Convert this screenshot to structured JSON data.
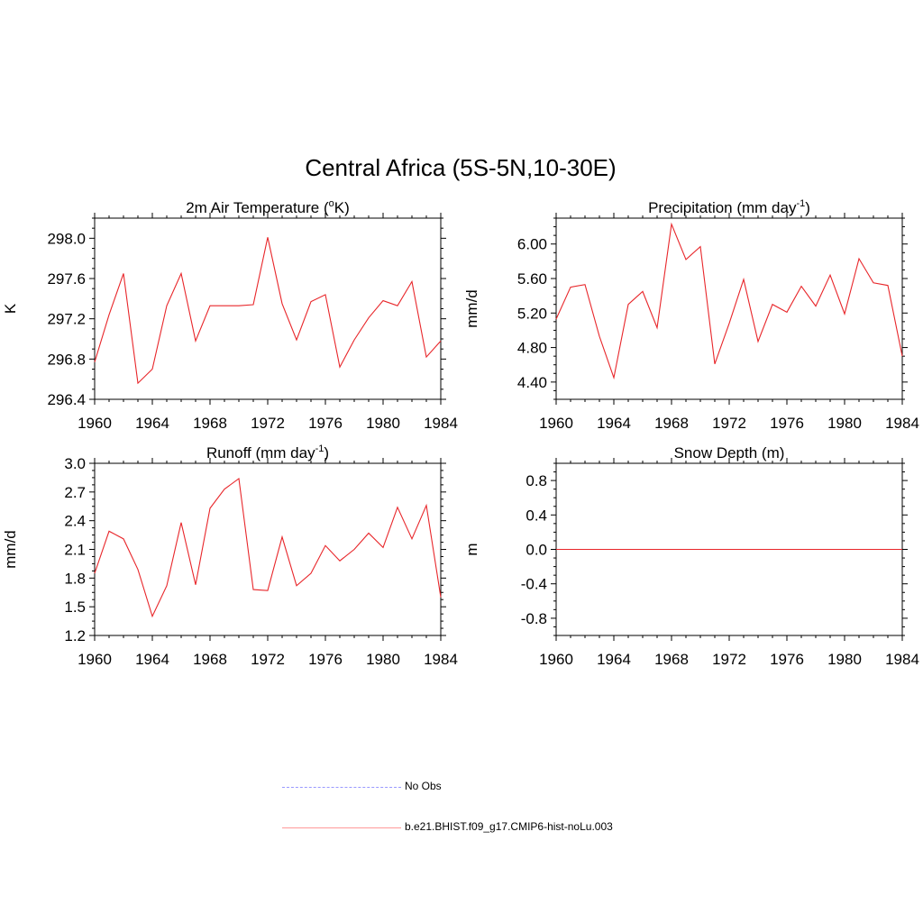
{
  "figure_title": "Central Africa (5S-5N,10-30E)",
  "series_color": "#e8262a",
  "obs_color": "#9999ff",
  "legend": {
    "obs_label": "No Obs",
    "model_label": "b.e21.BHIST.f09_g17.CMIP6-hist-noLu.003"
  },
  "chart_data": [
    {
      "type": "line",
      "title": "2m Air Temperature (",
      "title_sup": "o",
      "title_tail": "K)",
      "ylabel": "K",
      "xlim": [
        1960,
        1984
      ],
      "ylim": [
        296.4,
        298.2
      ],
      "xticks": [
        1960,
        1964,
        1968,
        1972,
        1976,
        1980,
        1984
      ],
      "yticks": [
        296.4,
        296.8,
        297.2,
        297.6,
        298.0
      ],
      "ytick_labels": [
        "296.4",
        "296.8",
        "297.2",
        "297.6",
        "298.0"
      ],
      "x": [
        1960,
        1961,
        1962,
        1963,
        1964,
        1965,
        1966,
        1967,
        1968,
        1969,
        1970,
        1971,
        1972,
        1973,
        1974,
        1975,
        1976,
        1977,
        1978,
        1979,
        1980,
        1981,
        1982,
        1983,
        1984
      ],
      "series": [
        {
          "name": "b.e21.BHIST.f09_g17.CMIP6-hist-noLu.003",
          "values": [
            296.77,
            297.24,
            297.65,
            296.56,
            296.7,
            297.33,
            297.65,
            296.98,
            297.33,
            297.33,
            297.33,
            297.34,
            298.01,
            297.35,
            296.99,
            297.37,
            297.44,
            296.72,
            296.99,
            297.21,
            297.38,
            297.33,
            297.57,
            296.82,
            296.98
          ]
        }
      ]
    },
    {
      "type": "line",
      "title": "Precipitation (mm day",
      "title_sup": "-1",
      "title_tail": ")",
      "ylabel": "mm/d",
      "xlim": [
        1960,
        1984
      ],
      "ylim": [
        4.2,
        6.3
      ],
      "xticks": [
        1960,
        1964,
        1968,
        1972,
        1976,
        1980,
        1984
      ],
      "yticks": [
        4.4,
        4.8,
        5.2,
        5.6,
        6.0
      ],
      "ytick_labels": [
        "4.40",
        "4.80",
        "5.20",
        "5.60",
        "6.00"
      ],
      "x": [
        1960,
        1961,
        1962,
        1963,
        1964,
        1965,
        1966,
        1967,
        1968,
        1969,
        1970,
        1971,
        1972,
        1973,
        1974,
        1975,
        1976,
        1977,
        1978,
        1979,
        1980,
        1981,
        1982,
        1983,
        1984
      ],
      "series": [
        {
          "name": "b.e21.BHIST.f09_g17.CMIP6-hist-noLu.003",
          "values": [
            5.13,
            5.5,
            5.53,
            4.93,
            4.45,
            5.3,
            5.45,
            5.03,
            6.23,
            5.82,
            5.97,
            4.61,
            5.08,
            5.59,
            4.87,
            5.3,
            5.21,
            5.51,
            5.28,
            5.64,
            5.19,
            5.83,
            5.55,
            5.52,
            4.7
          ]
        }
      ]
    },
    {
      "type": "line",
      "title": "Runoff (mm day",
      "title_sup": "-1",
      "title_tail": ")",
      "ylabel": "mm/d",
      "xlim": [
        1960,
        1984
      ],
      "ylim": [
        1.2,
        3.0
      ],
      "xticks": [
        1960,
        1964,
        1968,
        1972,
        1976,
        1980,
        1984
      ],
      "yticks": [
        1.2,
        1.5,
        1.8,
        2.1,
        2.4,
        2.7,
        3.0
      ],
      "ytick_labels": [
        "1.2",
        "1.5",
        "1.8",
        "2.1",
        "2.4",
        "2.7",
        "3.0"
      ],
      "x": [
        1960,
        1961,
        1962,
        1963,
        1964,
        1965,
        1966,
        1967,
        1968,
        1969,
        1970,
        1971,
        1972,
        1973,
        1974,
        1975,
        1976,
        1977,
        1978,
        1979,
        1980,
        1981,
        1982,
        1983,
        1984
      ],
      "series": [
        {
          "name": "b.e21.BHIST.f09_g17.CMIP6-hist-noLu.003",
          "values": [
            1.85,
            2.29,
            2.21,
            1.89,
            1.4,
            1.72,
            2.38,
            1.73,
            2.53,
            2.73,
            2.84,
            1.68,
            1.67,
            2.23,
            1.72,
            1.85,
            2.14,
            1.98,
            2.1,
            2.27,
            2.12,
            2.54,
            2.21,
            2.56,
            1.6
          ]
        }
      ]
    },
    {
      "type": "line",
      "title": "Snow Depth (m)",
      "title_sup": "",
      "title_tail": "",
      "ylabel": "m",
      "xlim": [
        1960,
        1984
      ],
      "ylim": [
        -1.0,
        1.0
      ],
      "xticks": [
        1960,
        1964,
        1968,
        1972,
        1976,
        1980,
        1984
      ],
      "yticks": [
        -0.8,
        -0.4,
        0.0,
        0.4,
        0.8
      ],
      "ytick_labels": [
        "-0.8",
        "-0.4",
        "0.0",
        "0.4",
        "0.8"
      ],
      "x": [
        1960,
        1961,
        1962,
        1963,
        1964,
        1965,
        1966,
        1967,
        1968,
        1969,
        1970,
        1971,
        1972,
        1973,
        1974,
        1975,
        1976,
        1977,
        1978,
        1979,
        1980,
        1981,
        1982,
        1983,
        1984
      ],
      "series": [
        {
          "name": "b.e21.BHIST.f09_g17.CMIP6-hist-noLu.003",
          "values": [
            0,
            0,
            0,
            0,
            0,
            0,
            0,
            0,
            0,
            0,
            0,
            0,
            0,
            0,
            0,
            0,
            0,
            0,
            0,
            0,
            0,
            0,
            0,
            0,
            0
          ]
        }
      ]
    }
  ]
}
